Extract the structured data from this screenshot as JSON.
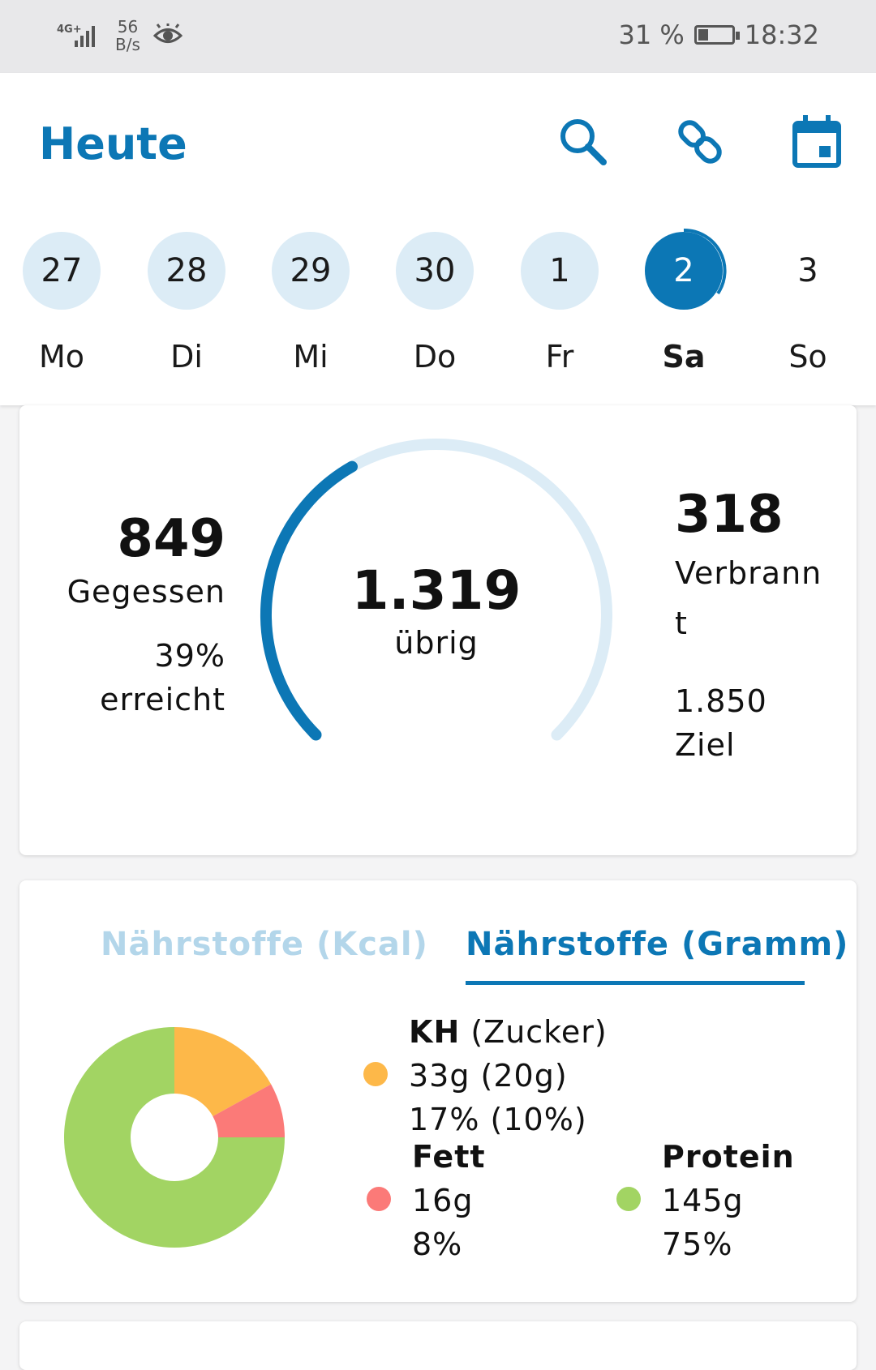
{
  "status_bar": {
    "network": "4G+",
    "speed_value": "56",
    "speed_unit": "B/s",
    "battery": "31 %",
    "battery_level_percent": 31,
    "time": "18:32"
  },
  "header": {
    "title": "Heute",
    "icons": [
      "search-icon",
      "link-icon",
      "calendar-icon"
    ]
  },
  "week": {
    "days": [
      {
        "num": "27",
        "label": "Mo"
      },
      {
        "num": "28",
        "label": "Di"
      },
      {
        "num": "29",
        "label": "Mi"
      },
      {
        "num": "30",
        "label": "Do"
      },
      {
        "num": "1",
        "label": "Fr"
      },
      {
        "num": "2",
        "label": "Sa"
      },
      {
        "num": "3",
        "label": "So"
      }
    ],
    "selected_index": 5
  },
  "calories": {
    "eaten_value": "849",
    "eaten_label": "Gegessen",
    "progress_percent": "39%",
    "progress_label": "erreicht",
    "remaining_value": "1.319",
    "remaining_label": "übrig",
    "burned_value": "318",
    "burned_label_line1": "Verbrann",
    "burned_label_line2": "t",
    "goal_value": "1.850",
    "goal_label": "Ziel",
    "gauge_fraction": 0.39
  },
  "nutrients": {
    "tabs": [
      "Nährstoffe (Kcal)",
      "Nährstoffe (Gramm)"
    ],
    "active_tab": 1,
    "carbs": {
      "title": "KH",
      "title_extra": "(Zucker)",
      "grams": "33g (20g)",
      "percent": "17% (10%)",
      "color": "#fdb849"
    },
    "fat": {
      "title": "Fett",
      "grams": "16g",
      "percent": "8%",
      "color": "#fb7a78"
    },
    "protein": {
      "title": "Protein",
      "grams": "145g",
      "percent": "75%",
      "color": "#a2d463"
    }
  },
  "chart_data": {
    "type": "pie",
    "categories": [
      "KH",
      "Fett",
      "Protein"
    ],
    "values": [
      17,
      8,
      75
    ],
    "colors": [
      "#fdb849",
      "#fb7a78",
      "#a2d463"
    ]
  },
  "colors": {
    "accent": "#0c77b5",
    "accent_light": "#dcecf6"
  }
}
